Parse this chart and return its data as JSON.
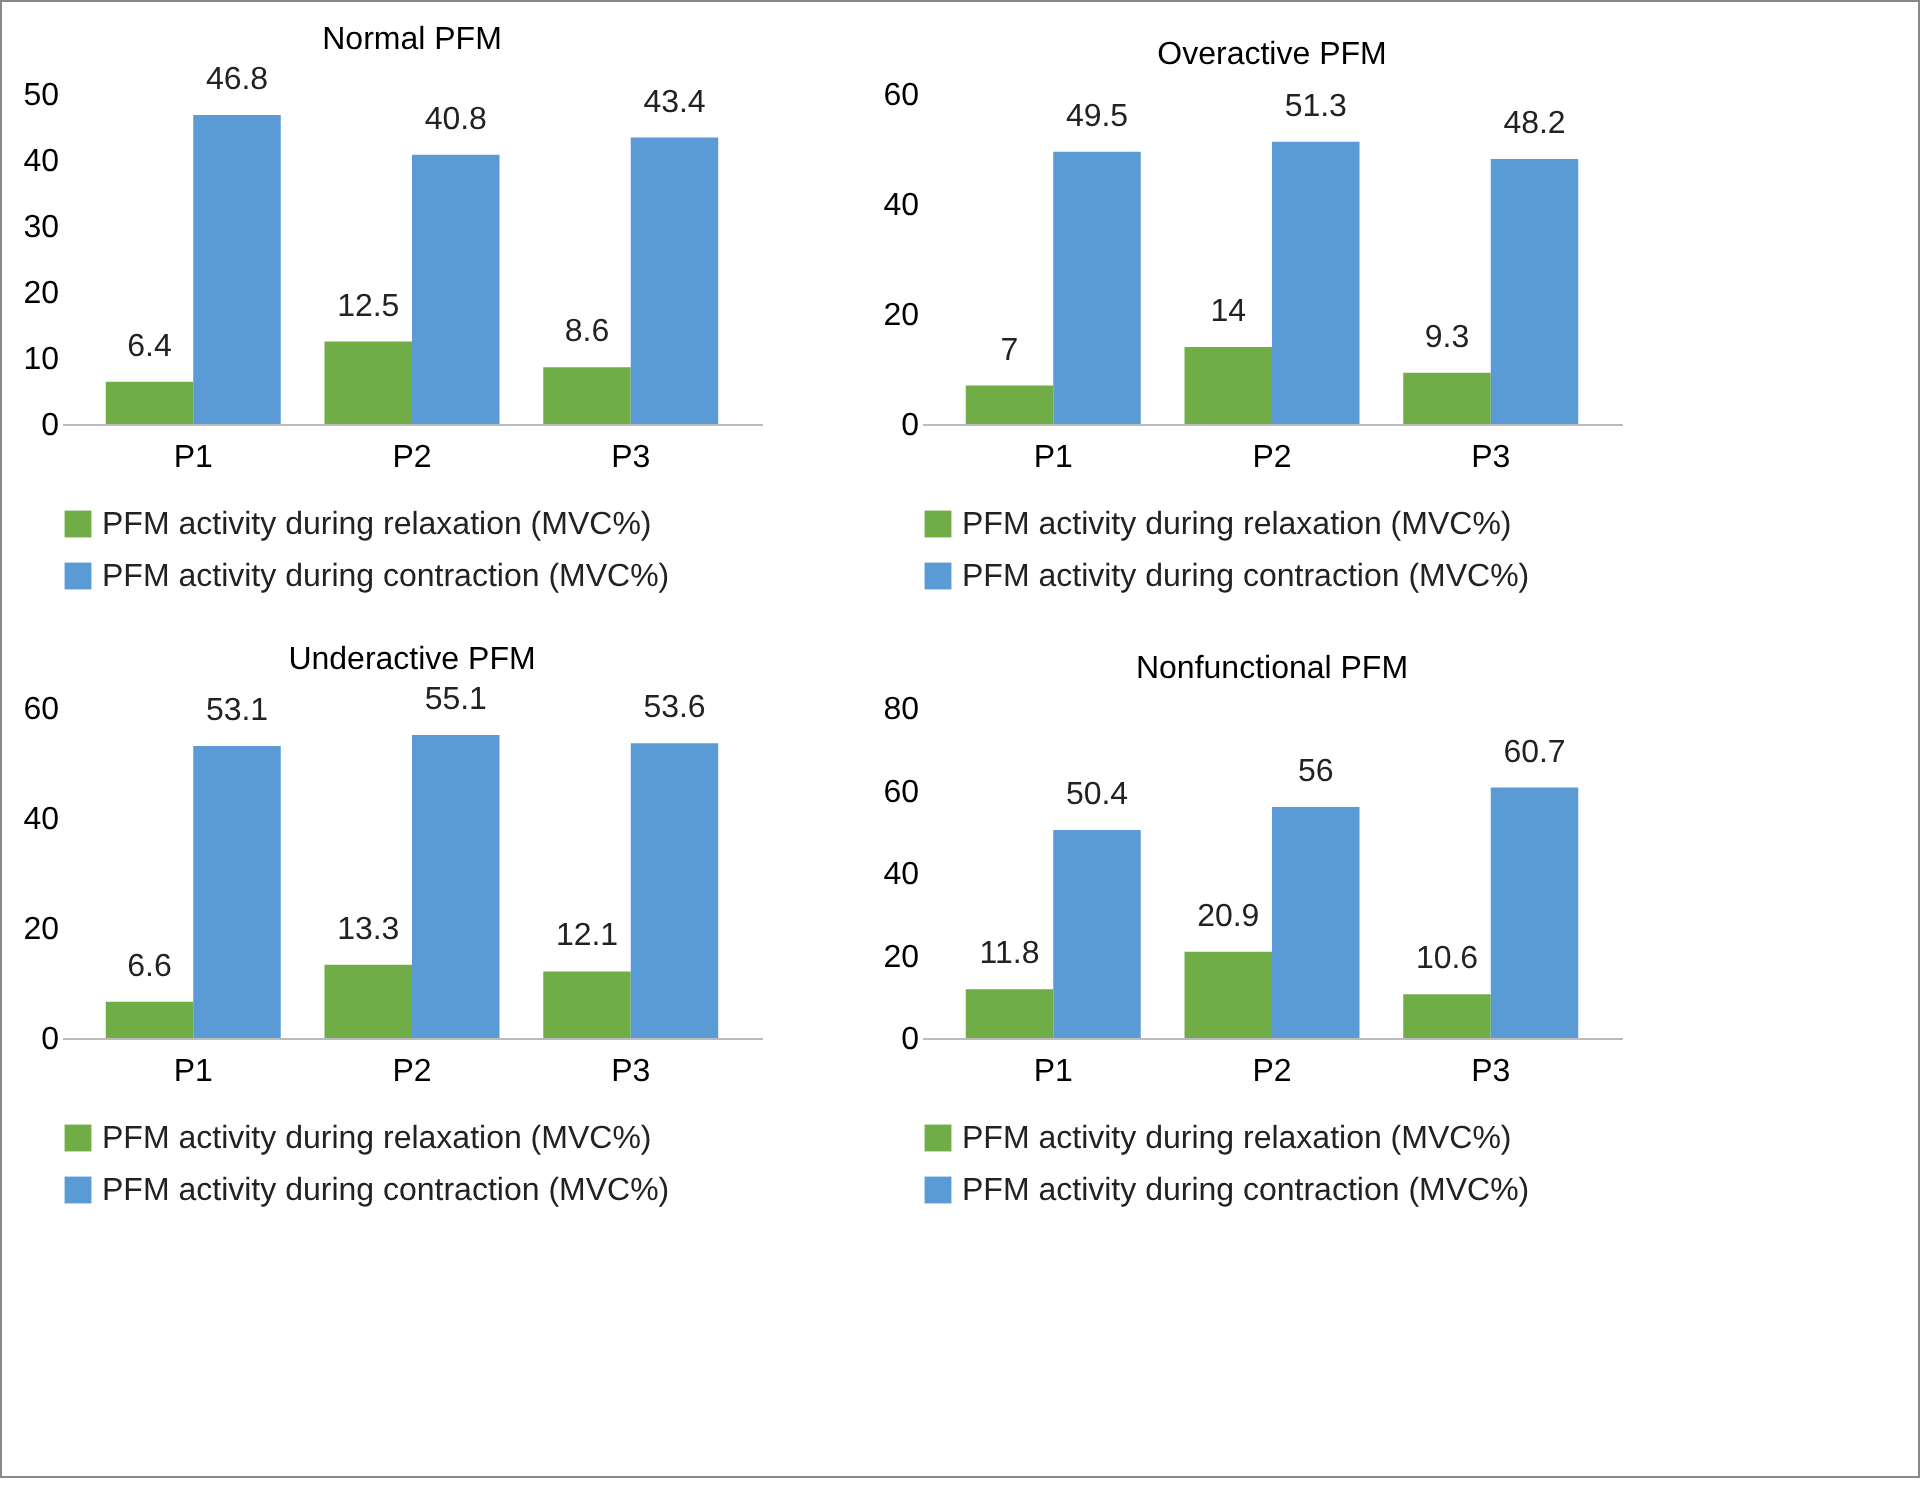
{
  "chart_data": [
    {
      "type": "bar",
      "title": "Normal PFM",
      "categories": [
        "P1",
        "P2",
        "P3"
      ],
      "ylim": [
        0,
        50
      ],
      "yticks": [
        0,
        10,
        20,
        30,
        40,
        50
      ],
      "data_labels": true,
      "legend": "bottom",
      "series": [
        {
          "name": "PFM activity during relaxation (MVC%)",
          "color": "#70ad47",
          "values": [
            6.4,
            12.5,
            8.6
          ]
        },
        {
          "name": "PFM activity during contraction (MVC%)",
          "color": "#5b9bd5",
          "values": [
            46.8,
            40.8,
            43.4
          ]
        }
      ]
    },
    {
      "type": "bar",
      "title": "Overactive PFM",
      "categories": [
        "P1",
        "P2",
        "P3"
      ],
      "ylim": [
        0,
        60
      ],
      "yticks": [
        0,
        20,
        40,
        60
      ],
      "data_labels": true,
      "legend": "bottom",
      "series": [
        {
          "name": "PFM activity during relaxation (MVC%)",
          "color": "#70ad47",
          "values": [
            7,
            14,
            9.3
          ]
        },
        {
          "name": "PFM activity during contraction (MVC%)",
          "color": "#5b9bd5",
          "values": [
            49.5,
            51.3,
            48.2
          ]
        }
      ]
    },
    {
      "type": "bar",
      "title": "Underactive PFM",
      "categories": [
        "P1",
        "P2",
        "P3"
      ],
      "ylim": [
        0,
        60
      ],
      "yticks": [
        0,
        20,
        40,
        60
      ],
      "data_labels": true,
      "legend": "bottom",
      "series": [
        {
          "name": "PFM activity during relaxation (MVC%)",
          "color": "#70ad47",
          "values": [
            6.6,
            13.3,
            12.1
          ]
        },
        {
          "name": "PFM activity during contraction (MVC%)",
          "color": "#5b9bd5",
          "values": [
            53.1,
            55.1,
            53.6
          ]
        }
      ]
    },
    {
      "type": "bar",
      "title": "Nonfunctional PFM",
      "categories": [
        "P1",
        "P2",
        "P3"
      ],
      "ylim": [
        0,
        80
      ],
      "yticks": [
        0,
        20,
        40,
        60,
        80
      ],
      "data_labels": true,
      "legend": "bottom",
      "series": [
        {
          "name": "PFM activity during relaxation (MVC%)",
          "color": "#70ad47",
          "values": [
            11.8,
            20.9,
            10.6
          ]
        },
        {
          "name": "PFM activity during contraction (MVC%)",
          "color": "#5b9bd5",
          "values": [
            50.4,
            56,
            60.7
          ]
        }
      ]
    }
  ]
}
